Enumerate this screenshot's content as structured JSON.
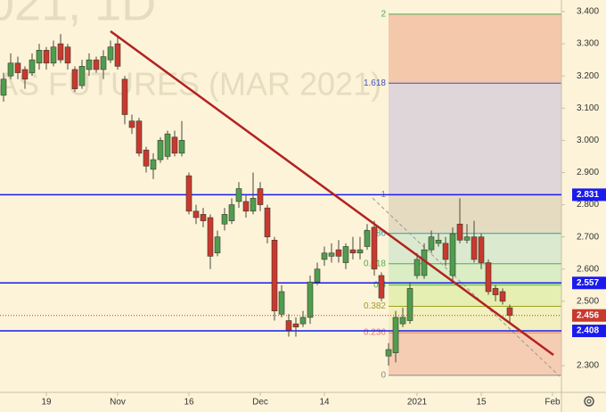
{
  "chart_data": {
    "type": "candlestick",
    "watermark": [
      "021, 1D",
      "AS FUTURES (MAR 2021)"
    ],
    "categories": [
      null,
      null,
      null,
      null,
      null,
      null,
      "19",
      null,
      null,
      null,
      null,
      null,
      null,
      null,
      null,
      null,
      "Nov",
      null,
      null,
      null,
      null,
      null,
      null,
      null,
      null,
      null,
      "16",
      null,
      null,
      null,
      null,
      null,
      null,
      null,
      null,
      null,
      "Dec",
      null,
      null,
      null,
      null,
      null,
      null,
      null,
      null,
      "14",
      null,
      null,
      null,
      null,
      null,
      null,
      null,
      null,
      null,
      null,
      null,
      null,
      "2021",
      null,
      null,
      null,
      null,
      null,
      null,
      null,
      null,
      "15",
      null,
      null,
      null,
      null,
      null,
      null,
      null,
      null,
      null,
      "Feb",
      null
    ],
    "open": [
      3.14,
      3.2,
      3.24,
      3.22,
      3.21,
      3.24,
      3.28,
      3.24,
      3.3,
      3.29,
      3.22,
      3.17,
      3.22,
      3.25,
      3.22,
      3.25,
      3.3,
      3.19,
      3.06,
      3.06,
      2.97,
      2.91,
      2.94,
      2.95,
      3.01,
      2.96,
      2.89,
      2.78,
      2.77,
      2.76,
      2.65,
      2.74,
      2.75,
      2.81,
      2.81,
      2.78,
      2.85,
      2.79,
      2.69,
      2.46,
      2.44,
      2.43,
      2.43,
      2.45,
      2.56,
      2.63,
      2.64,
      2.66,
      2.62,
      2.66,
      2.65,
      2.67,
      2.73,
      2.58,
      2.33,
      2.34,
      2.43,
      2.44,
      2.58,
      2.58,
      2.66,
      2.68,
      2.68,
      2.58,
      2.74,
      2.69,
      2.7,
      2.7,
      2.62,
      2.54,
      2.53,
      2.48,
      null,
      null,
      null,
      null,
      null,
      null,
      null
    ],
    "high": [
      3.21,
      3.27,
      3.26,
      3.23,
      3.27,
      3.3,
      3.29,
      3.31,
      3.33,
      3.3,
      3.23,
      3.25,
      3.27,
      3.26,
      3.28,
      3.31,
      3.32,
      3.2,
      3.08,
      3.07,
      2.98,
      2.96,
      3.01,
      3.03,
      3.03,
      3.06,
      2.9,
      2.8,
      2.79,
      2.77,
      2.72,
      2.79,
      2.82,
      2.87,
      2.83,
      2.9,
      2.87,
      2.8,
      2.7,
      2.55,
      2.46,
      2.45,
      2.47,
      2.58,
      2.62,
      2.67,
      2.68,
      2.69,
      2.68,
      2.7,
      2.7,
      2.74,
      2.75,
      2.59,
      2.37,
      2.47,
      2.48,
      2.56,
      2.65,
      2.68,
      2.72,
      2.71,
      2.7,
      2.73,
      2.82,
      2.74,
      2.75,
      2.71,
      2.63,
      2.55,
      2.54,
      2.49,
      null,
      null,
      null,
      null,
      null,
      null,
      null
    ],
    "low": [
      3.12,
      3.19,
      3.19,
      3.16,
      3.2,
      3.22,
      3.22,
      3.23,
      3.24,
      3.22,
      3.15,
      3.16,
      3.2,
      3.21,
      3.19,
      3.24,
      3.22,
      3.05,
      3.02,
      2.95,
      2.9,
      2.88,
      2.93,
      2.94,
      2.95,
      2.95,
      2.77,
      2.74,
      2.73,
      2.6,
      2.64,
      2.72,
      2.74,
      2.79,
      2.76,
      2.77,
      2.78,
      2.68,
      2.44,
      2.45,
      2.39,
      2.39,
      2.42,
      2.43,
      2.55,
      2.61,
      2.62,
      2.62,
      2.6,
      2.63,
      2.63,
      2.66,
      2.58,
      2.5,
      2.3,
      2.31,
      2.42,
      2.43,
      2.57,
      2.57,
      2.65,
      2.67,
      2.61,
      2.56,
      2.68,
      2.68,
      2.62,
      2.6,
      2.52,
      2.5,
      2.49,
      2.43,
      null,
      null,
      null,
      null,
      null,
      null,
      null
    ],
    "close": [
      3.19,
      3.24,
      3.21,
      3.19,
      3.25,
      3.28,
      3.24,
      3.29,
      3.25,
      3.24,
      3.16,
      3.23,
      3.25,
      3.22,
      3.26,
      3.29,
      3.23,
      3.08,
      3.04,
      2.96,
      2.92,
      2.94,
      3.0,
      3.02,
      2.96,
      3.0,
      2.78,
      2.76,
      2.75,
      2.64,
      2.7,
      2.77,
      2.8,
      2.85,
      2.78,
      2.82,
      2.8,
      2.7,
      2.47,
      2.53,
      2.41,
      2.42,
      2.45,
      2.56,
      2.6,
      2.65,
      2.65,
      2.64,
      2.67,
      2.65,
      2.66,
      2.72,
      2.6,
      2.51,
      2.35,
      2.45,
      2.45,
      2.54,
      2.63,
      2.66,
      2.7,
      2.69,
      2.63,
      2.71,
      2.69,
      2.7,
      2.63,
      2.62,
      2.53,
      2.52,
      2.5,
      2.456,
      null,
      null,
      null,
      null,
      null,
      null,
      null
    ],
    "up_color": "#4f9d4f",
    "down_color": "#c8392f",
    "ylim": [
      2.217,
      3.436
    ],
    "yticks": [
      {
        "value": 3.4,
        "label": "3.400"
      },
      {
        "value": 3.3,
        "label": "3.300"
      },
      {
        "value": 3.2,
        "label": "3.200"
      },
      {
        "value": 3.1,
        "label": "3.100"
      },
      {
        "value": 3.0,
        "label": "3.000"
      },
      {
        "value": 2.9,
        "label": "2.900"
      },
      {
        "value": 2.8,
        "label": "2.800"
      },
      {
        "value": 2.7,
        "label": "2.700"
      },
      {
        "value": 2.6,
        "label": "2.600"
      },
      {
        "value": 2.5,
        "label": "2.500"
      },
      {
        "value": 2.3,
        "label": "2.300"
      }
    ],
    "hlines": [
      2.831,
      2.557,
      2.408
    ],
    "hline_color": "#1a1aee",
    "fib": {
      "price_0": 2.27,
      "price_1": 2.831,
      "levels": [
        2,
        1.618,
        1,
        0.786,
        0.618,
        0.5,
        0.382,
        0.236,
        0
      ],
      "level_colors": [
        "#4caf50",
        "#3f51b5",
        "#888888",
        "#26a69a",
        "#4caf50",
        "#4caf50",
        "#a0a020",
        "#e57373",
        "#888888"
      ],
      "zone_colors": [
        "#f2c0a2",
        "#d8d0d8",
        "#e0d6bc",
        "#d5e7cb",
        "#d5ebc0",
        "#e1eda9",
        "#eeeeb8",
        "#f3c6ab"
      ]
    },
    "trend_color": "#b22222"
  }
}
